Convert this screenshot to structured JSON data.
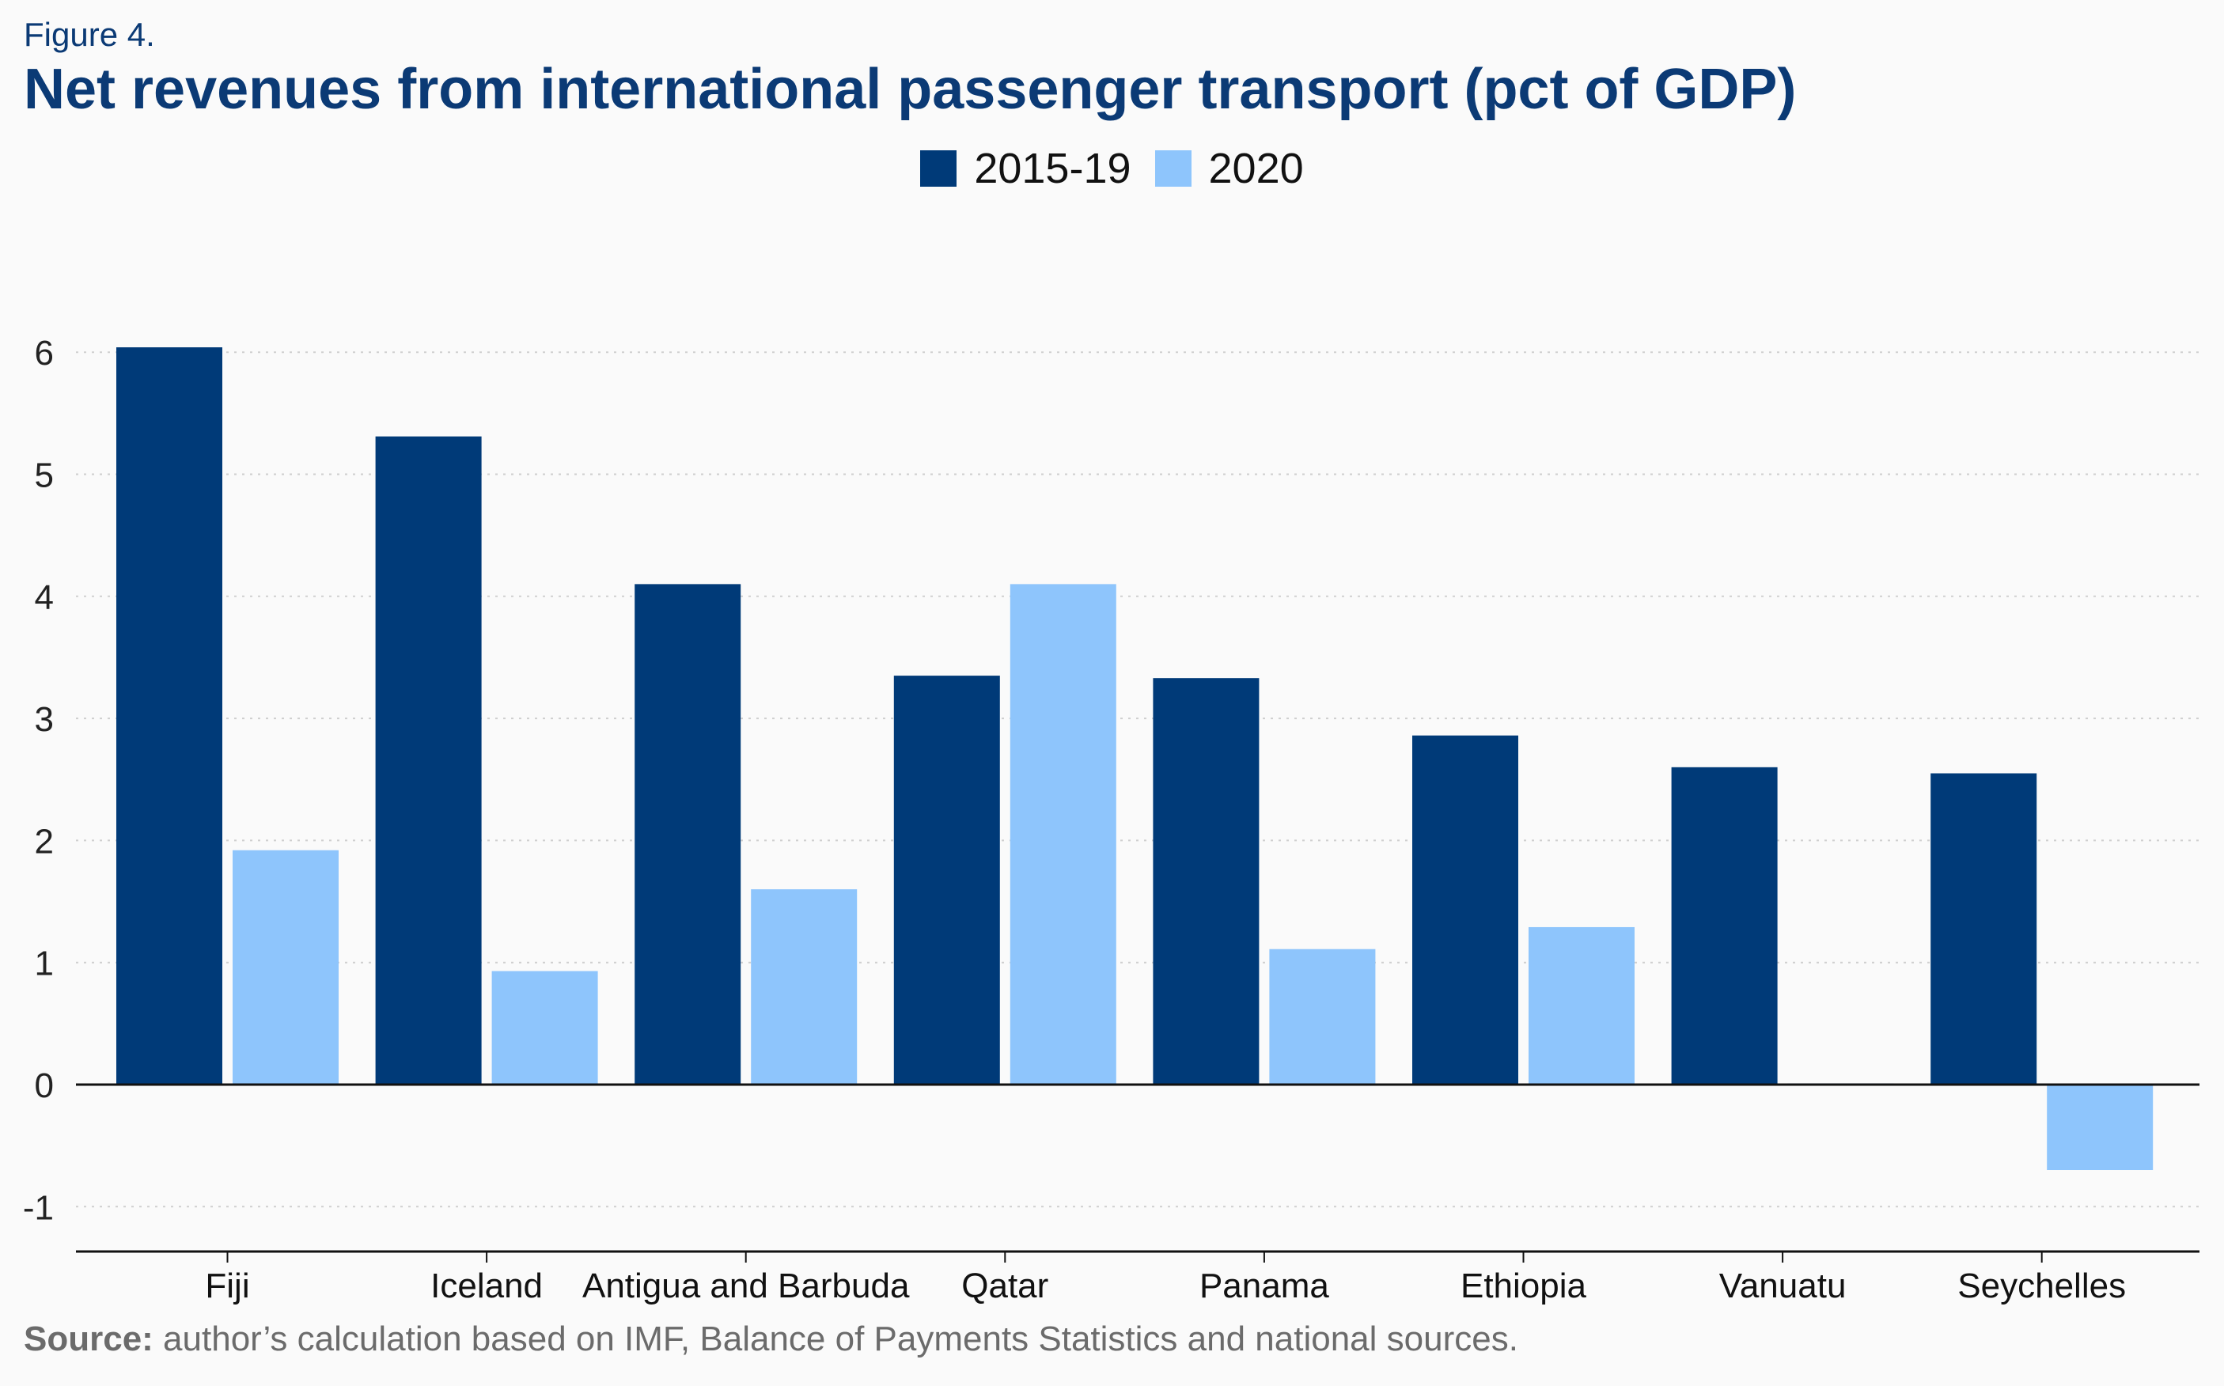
{
  "figure_label": "Figure 4.",
  "source": {
    "prefix": "Source:",
    "text": " author’s calculation based on IMF, Balance of Payments Statistics and national sources."
  },
  "colors": {
    "series_dark": "#003a78",
    "series_light": "#8ec5fc",
    "title": "#0b3a75",
    "gridline": "#cfcfcf",
    "axis": "#111111"
  },
  "chart_data": {
    "type": "bar",
    "title": "Net revenues from international passenger transport (pct of GDP)",
    "xlabel": "",
    "ylabel": "",
    "categories": [
      "Fiji",
      "Iceland",
      "Antigua and Barbuda",
      "Qatar",
      "Panama",
      "Ethiopia",
      "Vanuatu",
      "Seychelles"
    ],
    "series": [
      {
        "name": "2015-19",
        "values": [
          6.04,
          5.31,
          4.1,
          3.35,
          3.33,
          2.86,
          2.6,
          2.55
        ]
      },
      {
        "name": "2020",
        "values": [
          1.92,
          0.93,
          1.6,
          4.1,
          1.11,
          1.29,
          0.01,
          -0.7
        ]
      }
    ],
    "yticks": [
      -1,
      0,
      1,
      2,
      3,
      4,
      5,
      6
    ],
    "ylim": [
      -1.4,
      6.6
    ],
    "grid": true,
    "legend_position": "top-center"
  }
}
